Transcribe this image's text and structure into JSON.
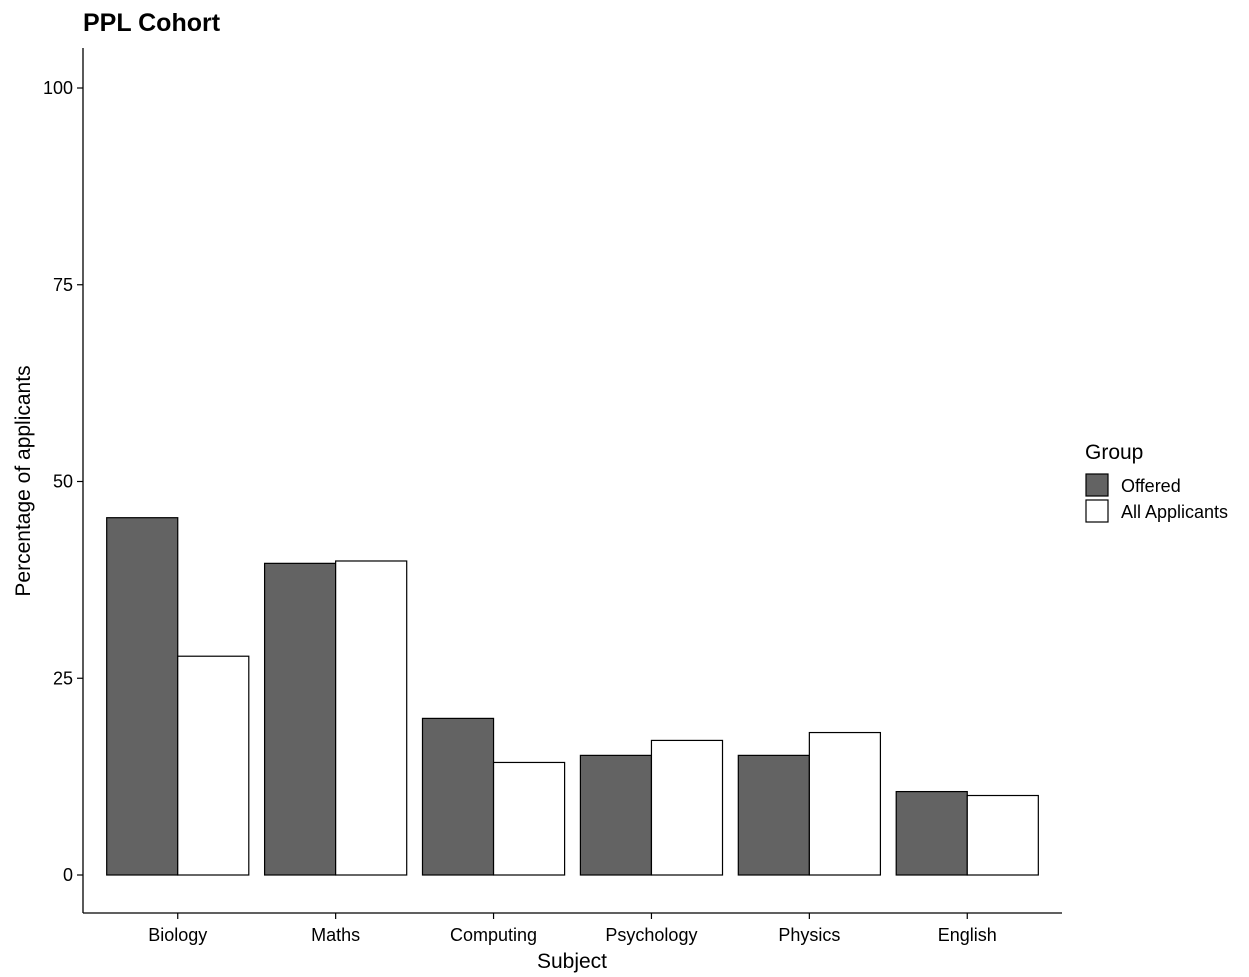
{
  "chart_data": {
    "type": "bar",
    "title": "PPL Cohort",
    "xlabel": "Subject",
    "ylabel": "Percentage of applicants",
    "categories": [
      "Biology",
      "Maths",
      "Computing",
      "Psychology",
      "Physics",
      "English"
    ],
    "series": [
      {
        "name": "Offered",
        "color": "#636363",
        "values": [
          45.4,
          39.6,
          19.9,
          15.2,
          15.2,
          10.6
        ]
      },
      {
        "name": "All Applicants",
        "color": "#ffffff",
        "values": [
          27.8,
          39.9,
          14.3,
          17.1,
          18.1,
          10.1
        ]
      }
    ],
    "ylim": [
      -4.8,
      105
    ],
    "yticks": [
      0,
      25,
      50,
      75,
      100
    ],
    "legend": {
      "title": "Group",
      "position": "right"
    },
    "grid": false
  }
}
